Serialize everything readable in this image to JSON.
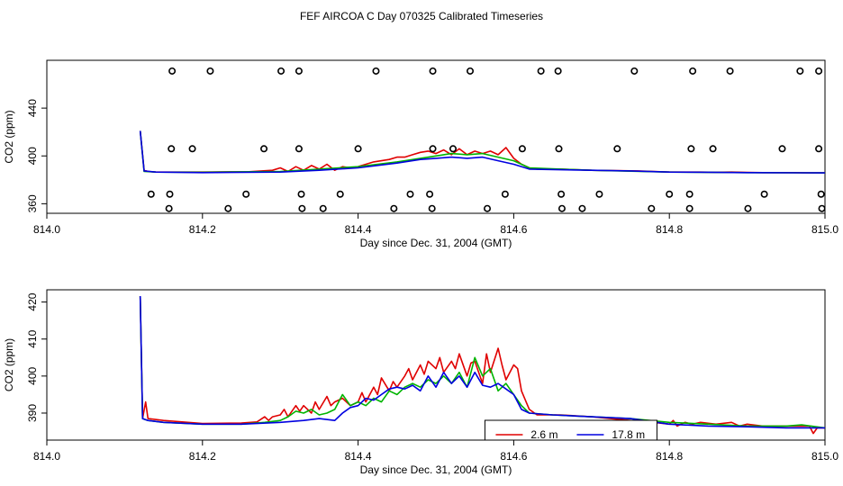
{
  "title": "FEF AIRCOA C  Day 070325  Calibrated Timeseries",
  "colors": {
    "red": "#e00000",
    "green": "#00b400",
    "blue": "#0000e0",
    "axis": "#000000"
  },
  "chart_data": [
    {
      "type": "line",
      "panel": "top",
      "title": "",
      "xlabel": "Day since Dec. 31, 2004 (GMT)",
      "ylabel": "CO2 (ppm)",
      "xlim": [
        814.0,
        815.0
      ],
      "ylim": [
        352,
        480
      ],
      "x_ticks": [
        "814.0",
        "814.2",
        "814.4",
        "814.6",
        "814.8",
        "815.0"
      ],
      "x_tick_values": [
        814.0,
        814.2,
        814.4,
        814.6,
        814.8,
        815.0
      ],
      "y_ticks": [
        "360",
        "400",
        "440"
      ],
      "y_tick_values": [
        360,
        400,
        440
      ],
      "grid": false,
      "series": [
        {
          "name": "red",
          "color": "#e00000",
          "x": [
            814.12,
            814.125,
            814.13,
            814.14,
            814.2,
            814.26,
            814.29,
            814.3,
            814.31,
            814.32,
            814.33,
            814.34,
            814.35,
            814.36,
            814.37,
            814.38,
            814.39,
            814.4,
            814.41,
            814.42,
            814.43,
            814.44,
            814.45,
            814.46,
            814.47,
            814.48,
            814.49,
            814.5,
            814.51,
            814.52,
            814.53,
            814.54,
            814.55,
            814.56,
            814.57,
            814.58,
            814.59,
            814.6,
            814.61,
            814.62,
            814.63,
            814.66,
            814.7,
            814.76,
            814.78,
            814.8,
            814.82,
            814.84,
            814.86,
            814.88,
            814.9,
            814.92,
            814.94,
            814.96,
            814.98,
            815.0
          ],
          "y": [
            421,
            388,
            387,
            386.5,
            386.5,
            386.8,
            388,
            390,
            387,
            391,
            388,
            392,
            389,
            393,
            388,
            391,
            390,
            391,
            393,
            395,
            396,
            397,
            399,
            399,
            401,
            403,
            404,
            402,
            405,
            401,
            406,
            401,
            404,
            402,
            404,
            401,
            407,
            398,
            393,
            390,
            389,
            389,
            388,
            387.5,
            387,
            386.5,
            386.5,
            386.5,
            386.3,
            386.5,
            386.2,
            386,
            386,
            386,
            385.8,
            385.8
          ]
        },
        {
          "name": "green",
          "color": "#00b400",
          "x": [
            814.12,
            814.125,
            814.14,
            814.2,
            814.3,
            814.35,
            814.4,
            814.45,
            814.5,
            814.52,
            814.54,
            814.56,
            814.58,
            814.6,
            814.62,
            814.7,
            814.8,
            814.9,
            815.0
          ],
          "y": [
            421,
            387,
            386.5,
            386.3,
            387,
            389,
            391,
            395,
            400,
            402,
            401,
            402,
            399,
            396,
            390,
            388,
            386.5,
            386,
            385.8
          ]
        },
        {
          "name": "blue",
          "color": "#0000e0",
          "x": [
            814.12,
            814.125,
            814.14,
            814.2,
            814.3,
            814.35,
            814.4,
            814.45,
            814.48,
            814.5,
            814.52,
            814.54,
            814.56,
            814.58,
            814.6,
            814.62,
            814.7,
            814.75,
            814.8,
            814.85,
            814.9,
            815.0
          ],
          "y": [
            421,
            387.5,
            386.5,
            386,
            386.5,
            388,
            390,
            394,
            397,
            398,
            399,
            398,
            399,
            396,
            393,
            389,
            388,
            387.5,
            386.5,
            386.3,
            386,
            385.8
          ]
        }
      ],
      "flagged_points": {
        "x": [
          814.161,
          814.21,
          814.301,
          814.324,
          814.423,
          814.496,
          814.544,
          814.635,
          814.657,
          814.755,
          814.83,
          814.878,
          814.968,
          814.992,
          814.16,
          814.187,
          814.279,
          814.324,
          814.4,
          814.496,
          814.522,
          814.611,
          814.658,
          814.733,
          814.828,
          814.856,
          814.945,
          814.992,
          814.134,
          814.158,
          814.256,
          814.327,
          814.377,
          814.467,
          814.492,
          814.589,
          814.661,
          814.71,
          814.8,
          814.826,
          814.922,
          814.995,
          814.157,
          814.233,
          814.328,
          814.355,
          814.446,
          814.495,
          814.566,
          814.662,
          814.688,
          814.777,
          814.826,
          814.901,
          814.996
        ],
        "y": [
          471,
          471,
          471,
          471,
          471,
          471,
          471,
          471,
          471,
          471,
          471,
          471,
          471,
          471,
          406,
          406,
          406,
          406,
          406,
          406,
          406,
          406,
          406,
          406,
          406,
          406,
          406,
          406,
          368,
          368,
          368,
          368,
          368,
          368,
          368,
          368,
          368,
          368,
          368,
          368,
          368,
          368,
          356,
          356,
          356,
          356,
          356,
          356,
          356,
          356,
          356,
          356,
          356,
          356,
          356
        ]
      }
    },
    {
      "type": "line",
      "panel": "bottom",
      "title": "",
      "xlabel": "Day since Dec. 31, 2004 (GMT)",
      "ylabel": "CO2 (ppm)",
      "xlim": [
        814.0,
        815.0
      ],
      "ylim": [
        382.7,
        423.3
      ],
      "x_ticks": [
        "814.0",
        "814.2",
        "814.4",
        "814.6",
        "814.8",
        "815.0"
      ],
      "x_tick_values": [
        814.0,
        814.2,
        814.4,
        814.6,
        814.8,
        815.0
      ],
      "y_ticks": [
        "390",
        "400",
        "410",
        "420"
      ],
      "y_tick_values": [
        390,
        400,
        410,
        420
      ],
      "grid": false,
      "legend": {
        "placement": "bottom-right",
        "entries": [
          {
            "label": "2.6 m",
            "color": "#e00000"
          },
          {
            "label": "17.8 m",
            "color": "#0000e0"
          }
        ]
      },
      "series": [
        {
          "name": "2.6 m",
          "color": "#e00000",
          "x": [
            814.12,
            814.123,
            814.127,
            814.13,
            814.15,
            814.2,
            814.25,
            814.27,
            814.28,
            814.285,
            814.29,
            814.3,
            814.305,
            814.31,
            814.32,
            814.325,
            814.33,
            814.34,
            814.345,
            814.35,
            814.36,
            814.365,
            814.37,
            814.38,
            814.385,
            814.39,
            814.4,
            814.405,
            814.41,
            814.42,
            814.425,
            814.43,
            814.44,
            814.445,
            814.45,
            814.46,
            814.465,
            814.47,
            814.48,
            814.485,
            814.49,
            814.5,
            814.505,
            814.51,
            814.52,
            814.525,
            814.53,
            814.54,
            814.545,
            814.55,
            814.56,
            814.565,
            814.57,
            814.58,
            814.585,
            814.59,
            814.6,
            814.605,
            814.61,
            814.62,
            814.63,
            814.66,
            814.7,
            814.75,
            814.78,
            814.8,
            814.805,
            814.81,
            814.82,
            814.83,
            814.84,
            814.86,
            814.88,
            814.89,
            814.9,
            814.92,
            814.94,
            814.96,
            814.98,
            814.985,
            814.99,
            815.0
          ],
          "y": [
            421.6,
            388.5,
            393,
            388.5,
            388,
            387.2,
            387.3,
            387.6,
            389,
            388,
            389,
            389.5,
            391,
            389,
            392,
            390.5,
            392,
            390,
            393,
            391,
            394.5,
            392,
            393,
            394,
            393,
            392,
            393,
            395.5,
            393,
            397,
            395,
            399.5,
            396,
            398.5,
            397,
            400,
            402,
            399,
            403,
            400.5,
            404,
            402,
            405,
            401,
            404,
            402,
            406,
            400,
            403.5,
            404,
            398,
            406,
            401,
            407.5,
            403,
            399,
            403,
            402,
            396,
            391,
            389.5,
            389.5,
            389,
            388,
            387.5,
            387,
            388,
            386.5,
            387.5,
            387,
            387.5,
            387,
            387.5,
            386.5,
            387,
            386.5,
            386.5,
            386.5,
            386.5,
            384.5,
            386,
            386
          ]
        },
        {
          "name": "green",
          "color": "#00b400",
          "x": [
            814.12,
            814.123,
            814.13,
            814.15,
            814.2,
            814.25,
            814.28,
            814.3,
            814.31,
            814.32,
            814.33,
            814.34,
            814.35,
            814.36,
            814.37,
            814.38,
            814.39,
            814.4,
            814.41,
            814.42,
            814.43,
            814.44,
            814.45,
            814.46,
            814.47,
            814.48,
            814.49,
            814.5,
            814.51,
            814.52,
            814.53,
            814.54,
            814.55,
            814.56,
            814.57,
            814.58,
            814.59,
            814.6,
            814.61,
            814.62,
            814.65,
            814.7,
            814.75,
            814.8,
            814.85,
            814.9,
            814.95,
            814.97,
            815.0
          ],
          "y": [
            421.6,
            388.5,
            388,
            387.5,
            387,
            387,
            387.5,
            388,
            389,
            390.5,
            390,
            391,
            389.5,
            390,
            391,
            395,
            392,
            393,
            392,
            394,
            393,
            396,
            395,
            397,
            398,
            397,
            399,
            398,
            400,
            398,
            401,
            397,
            405,
            400,
            402,
            396,
            398,
            395,
            392,
            390,
            389.5,
            389,
            388.5,
            387.5,
            387,
            386.5,
            386.5,
            386.8,
            386
          ]
        },
        {
          "name": "17.8 m",
          "color": "#0000e0",
          "x": [
            814.12,
            814.123,
            814.13,
            814.15,
            814.2,
            814.25,
            814.3,
            814.33,
            814.35,
            814.37,
            814.38,
            814.39,
            814.4,
            814.41,
            814.42,
            814.43,
            814.44,
            814.45,
            814.46,
            814.47,
            814.48,
            814.49,
            814.5,
            814.51,
            814.52,
            814.53,
            814.54,
            814.55,
            814.56,
            814.57,
            814.58,
            814.59,
            814.6,
            814.61,
            814.62,
            814.65,
            814.7,
            814.75,
            814.8,
            814.85,
            814.9,
            814.95,
            815.0
          ],
          "y": [
            421.6,
            388.5,
            388,
            387.5,
            387,
            387,
            387.5,
            388,
            388.5,
            388,
            390,
            391.5,
            392,
            394,
            393.5,
            395,
            396.5,
            397,
            396.5,
            397.5,
            396,
            400,
            397,
            401,
            398,
            400,
            397,
            401,
            397.5,
            397,
            398,
            396.5,
            395,
            391,
            390,
            389.5,
            389,
            388.5,
            387,
            386.5,
            386.3,
            386,
            386
          ]
        }
      ]
    }
  ]
}
